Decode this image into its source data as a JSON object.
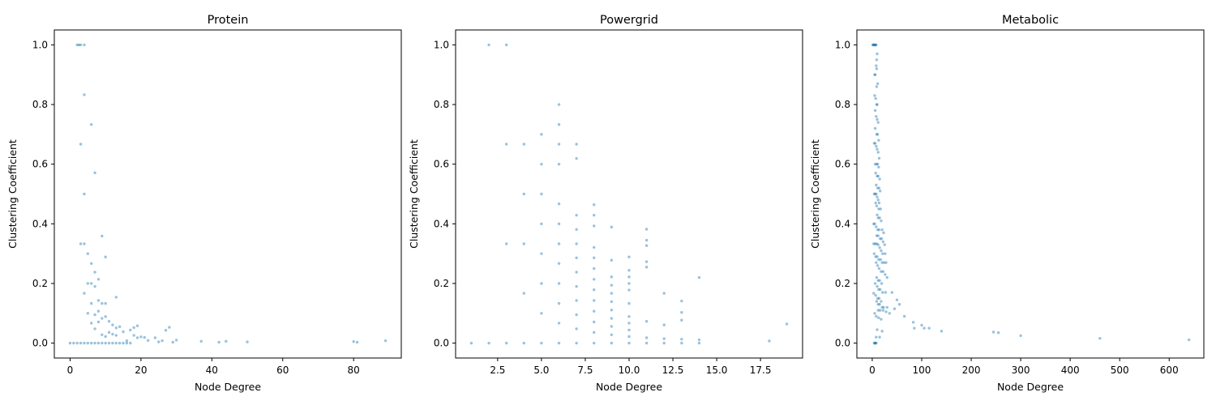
{
  "figure": {
    "background": "#ffffff",
    "point_color": "#1f77b4"
  },
  "chart_data": [
    {
      "type": "scatter",
      "title": "Protein",
      "xlabel": "Node Degree",
      "ylabel": "Clustering Coefficient",
      "xlim": [
        -4.45,
        93.45
      ],
      "ylim": [
        -0.05,
        1.05
      ],
      "xticks": [
        0,
        20,
        40,
        60,
        80
      ],
      "xtick_labels": [
        "0",
        "20",
        "40",
        "60",
        "80"
      ],
      "yticks": [
        0.0,
        0.2,
        0.4,
        0.6,
        0.8,
        1.0
      ],
      "ytick_labels": [
        "0.0",
        "0.2",
        "0.4",
        "0.6",
        "0.8",
        "1.0"
      ],
      "grid": false,
      "points": [
        [
          2,
          1
        ],
        [
          2.5,
          1
        ],
        [
          3,
          1
        ],
        [
          4,
          1
        ],
        [
          4,
          0.833
        ],
        [
          6,
          0.733
        ],
        [
          7,
          0.571
        ],
        [
          3,
          0.667
        ],
        [
          4,
          0.5
        ],
        [
          3,
          0.333
        ],
        [
          4,
          0.333
        ],
        [
          9,
          0.359
        ],
        [
          10,
          0.289
        ],
        [
          4,
          0.167
        ],
        [
          5,
          0.3
        ],
        [
          6,
          0.267
        ],
        [
          7,
          0.19
        ],
        [
          8,
          0.214
        ],
        [
          13,
          0.154
        ],
        [
          5,
          0.2
        ],
        [
          6,
          0.2
        ],
        [
          7,
          0.238
        ],
        [
          8,
          0.143
        ],
        [
          9,
          0.133
        ],
        [
          10,
          0.133
        ],
        [
          6,
          0.133
        ],
        [
          7,
          0.095
        ],
        [
          8,
          0.107
        ],
        [
          9,
          0.083
        ],
        [
          10,
          0.089
        ],
        [
          11,
          0.073
        ],
        [
          12,
          0.061
        ],
        [
          13,
          0.051
        ],
        [
          14,
          0.055
        ],
        [
          15,
          0.038
        ],
        [
          17,
          0.044
        ],
        [
          18,
          0.052
        ],
        [
          19,
          0.058
        ],
        [
          20,
          0.021
        ],
        [
          21,
          0.019
        ],
        [
          27,
          0.043
        ],
        [
          28,
          0.053
        ],
        [
          24,
          0.018
        ],
        [
          5,
          0.1
        ],
        [
          6,
          0.067
        ],
        [
          7,
          0.048
        ],
        [
          8,
          0.071
        ],
        [
          9,
          0.028
        ],
        [
          10,
          0.022
        ],
        [
          11,
          0.036
        ],
        [
          12,
          0.03
        ],
        [
          13,
          0.026
        ],
        [
          18,
          0.026
        ],
        [
          19,
          0.018
        ],
        [
          16,
          0.008
        ],
        [
          22,
          0.009
        ],
        [
          25,
          0.004
        ],
        [
          26,
          0.008
        ],
        [
          30,
          0.01
        ],
        [
          29,
          0.003
        ],
        [
          37,
          0.006
        ],
        [
          42,
          0.003
        ],
        [
          44,
          0.006
        ],
        [
          50,
          0.004
        ],
        [
          80,
          0.005
        ],
        [
          81,
          0.003
        ],
        [
          89,
          0.008
        ],
        [
          0,
          0
        ],
        [
          1,
          0
        ],
        [
          2,
          0
        ],
        [
          3,
          0
        ],
        [
          4,
          0
        ],
        [
          5,
          0
        ],
        [
          6,
          0
        ],
        [
          7,
          0
        ],
        [
          8,
          0
        ],
        [
          9,
          0
        ],
        [
          10,
          0
        ],
        [
          11,
          0
        ],
        [
          12,
          0
        ],
        [
          13,
          0
        ],
        [
          14,
          0
        ],
        [
          15,
          0
        ],
        [
          16,
          0
        ],
        [
          17,
          0
        ]
      ]
    },
    {
      "type": "scatter",
      "title": "Powergrid",
      "xlabel": "Node Degree",
      "ylabel": "Clustering Coefficient",
      "xlim": [
        0.1,
        19.9
      ],
      "ylim": [
        -0.05,
        1.05
      ],
      "xticks": [
        2.5,
        5.0,
        7.5,
        10.0,
        12.5,
        15.0,
        17.5
      ],
      "xtick_labels": [
        "2.5",
        "5.0",
        "7.5",
        "10.0",
        "12.5",
        "15.0",
        "17.5"
      ],
      "yticks": [
        0.0,
        0.2,
        0.4,
        0.6,
        0.8,
        1.0
      ],
      "ytick_labels": [
        "0.0",
        "0.2",
        "0.4",
        "0.6",
        "0.8",
        "1.0"
      ],
      "grid": false,
      "points": [
        [
          1,
          0
        ],
        [
          2,
          0
        ],
        [
          2,
          1
        ],
        [
          3,
          0
        ],
        [
          3,
          1
        ],
        [
          3,
          0.667
        ],
        [
          3,
          0.333
        ],
        [
          4,
          0
        ],
        [
          4,
          0.667
        ],
        [
          4,
          0.5
        ],
        [
          4,
          0.333
        ],
        [
          4,
          0.167
        ],
        [
          5,
          0
        ],
        [
          5,
          0.7
        ],
        [
          5,
          0.6
        ],
        [
          5,
          0.5
        ],
        [
          5,
          0.4
        ],
        [
          5,
          0.3
        ],
        [
          5,
          0.2
        ],
        [
          5,
          0.1
        ],
        [
          6,
          0
        ],
        [
          6,
          0.8
        ],
        [
          6,
          0.733
        ],
        [
          6,
          0.667
        ],
        [
          6,
          0.6
        ],
        [
          6,
          0.467
        ],
        [
          6,
          0.4
        ],
        [
          6,
          0.333
        ],
        [
          6,
          0.267
        ],
        [
          6,
          0.2
        ],
        [
          6,
          0.133
        ],
        [
          6,
          0.067
        ],
        [
          7,
          0
        ],
        [
          7,
          0.667
        ],
        [
          7,
          0.619
        ],
        [
          7,
          0.429
        ],
        [
          7,
          0.381
        ],
        [
          7,
          0.333
        ],
        [
          7,
          0.286
        ],
        [
          7,
          0.238
        ],
        [
          7,
          0.19
        ],
        [
          7,
          0.143
        ],
        [
          7,
          0.095
        ],
        [
          7,
          0.048
        ],
        [
          8,
          0
        ],
        [
          8,
          0.464
        ],
        [
          8,
          0.429
        ],
        [
          8,
          0.393
        ],
        [
          8,
          0.321
        ],
        [
          8,
          0.286
        ],
        [
          8,
          0.25
        ],
        [
          8,
          0.214
        ],
        [
          8,
          0.179
        ],
        [
          8,
          0.143
        ],
        [
          8,
          0.107
        ],
        [
          8,
          0.071
        ],
        [
          8,
          0.036
        ],
        [
          9,
          0
        ],
        [
          9,
          0.389
        ],
        [
          9,
          0.278
        ],
        [
          9,
          0.222
        ],
        [
          9,
          0.194
        ],
        [
          9,
          0.167
        ],
        [
          9,
          0.139
        ],
        [
          9,
          0.111
        ],
        [
          9,
          0.083
        ],
        [
          9,
          0.056
        ],
        [
          9,
          0.028
        ],
        [
          10,
          0
        ],
        [
          10,
          0.289
        ],
        [
          10,
          0.244
        ],
        [
          10,
          0.222
        ],
        [
          10,
          0.2
        ],
        [
          10,
          0.178
        ],
        [
          10,
          0.133
        ],
        [
          10,
          0.089
        ],
        [
          10,
          0.067
        ],
        [
          10,
          0.044
        ],
        [
          10,
          0.022
        ],
        [
          11,
          0
        ],
        [
          11,
          0.382
        ],
        [
          11,
          0.345
        ],
        [
          11,
          0.327
        ],
        [
          11,
          0.273
        ],
        [
          11,
          0.255
        ],
        [
          11,
          0.073
        ],
        [
          11,
          0.018
        ],
        [
          12,
          0
        ],
        [
          12,
          0.167
        ],
        [
          12,
          0.061
        ],
        [
          12,
          0.015
        ],
        [
          13,
          0
        ],
        [
          13,
          0.141
        ],
        [
          13,
          0.103
        ],
        [
          13,
          0.077
        ],
        [
          13,
          0.013
        ],
        [
          14,
          0
        ],
        [
          14,
          0.22
        ],
        [
          14,
          0.011
        ],
        [
          18,
          0.007
        ],
        [
          19,
          0.064
        ]
      ]
    },
    {
      "type": "scatter",
      "title": "Metabolic",
      "xlabel": "Node Degree",
      "ylabel": "Clustering Coefficient",
      "xlim": [
        -31,
        670
      ],
      "ylim": [
        -0.05,
        1.05
      ],
      "xticks": [
        0,
        100,
        200,
        300,
        400,
        500,
        600
      ],
      "xtick_labels": [
        "0",
        "100",
        "200",
        "300",
        "400",
        "500",
        "600"
      ],
      "yticks": [
        0.0,
        0.2,
        0.4,
        0.6,
        0.8,
        1.0
      ],
      "ytick_labels": [
        "0.0",
        "0.2",
        "0.4",
        "0.6",
        "0.8",
        "1.0"
      ],
      "grid": false,
      "points": [
        [
          1,
          1
        ],
        [
          2,
          1
        ],
        [
          3,
          1
        ],
        [
          4,
          1
        ],
        [
          5,
          1
        ],
        [
          6,
          1
        ],
        [
          7,
          1
        ],
        [
          8,
          1
        ],
        [
          9,
          0.95
        ],
        [
          10,
          0.97
        ],
        [
          8,
          0.93
        ],
        [
          9,
          0.92
        ],
        [
          5,
          0.9
        ],
        [
          6,
          0.9
        ],
        [
          9,
          0.86
        ],
        [
          11,
          0.87
        ],
        [
          5,
          0.83
        ],
        [
          7,
          0.82
        ],
        [
          9,
          0.8
        ],
        [
          10,
          0.8
        ],
        [
          6,
          0.78
        ],
        [
          8,
          0.76
        ],
        [
          10,
          0.75
        ],
        [
          12,
          0.74
        ],
        [
          6,
          0.72
        ],
        [
          9,
          0.7
        ],
        [
          11,
          0.7
        ],
        [
          13,
          0.68
        ],
        [
          4,
          0.67
        ],
        [
          6,
          0.67
        ],
        [
          8,
          0.66
        ],
        [
          10,
          0.65
        ],
        [
          12,
          0.64
        ],
        [
          14,
          0.62
        ],
        [
          6,
          0.6
        ],
        [
          9,
          0.6
        ],
        [
          11,
          0.6
        ],
        [
          13,
          0.59
        ],
        [
          7,
          0.57
        ],
        [
          10,
          0.56
        ],
        [
          12,
          0.56
        ],
        [
          15,
          0.55
        ],
        [
          8,
          0.53
        ],
        [
          11,
          0.52
        ],
        [
          14,
          0.52
        ],
        [
          16,
          0.51
        ],
        [
          4,
          0.5
        ],
        [
          6,
          0.5
        ],
        [
          8,
          0.5
        ],
        [
          10,
          0.49
        ],
        [
          12,
          0.48
        ],
        [
          14,
          0.47
        ],
        [
          7,
          0.47
        ],
        [
          9,
          0.46
        ],
        [
          13,
          0.45
        ],
        [
          17,
          0.45
        ],
        [
          10,
          0.43
        ],
        [
          12,
          0.42
        ],
        [
          15,
          0.42
        ],
        [
          18,
          0.41
        ],
        [
          3,
          0.4
        ],
        [
          5,
          0.4
        ],
        [
          8,
          0.39
        ],
        [
          11,
          0.38
        ],
        [
          14,
          0.38
        ],
        [
          20,
          0.38
        ],
        [
          23,
          0.37
        ],
        [
          9,
          0.36
        ],
        [
          12,
          0.36
        ],
        [
          16,
          0.35
        ],
        [
          19,
          0.35
        ],
        [
          22,
          0.34
        ],
        [
          25,
          0.33
        ],
        [
          3,
          0.333
        ],
        [
          6,
          0.333
        ],
        [
          9,
          0.333
        ],
        [
          12,
          0.33
        ],
        [
          15,
          0.32
        ],
        [
          18,
          0.31
        ],
        [
          21,
          0.3
        ],
        [
          26,
          0.3
        ],
        [
          4,
          0.3
        ],
        [
          7,
          0.29
        ],
        [
          10,
          0.29
        ],
        [
          13,
          0.28
        ],
        [
          17,
          0.28
        ],
        [
          20,
          0.27
        ],
        [
          24,
          0.27
        ],
        [
          28,
          0.27
        ],
        [
          8,
          0.27
        ],
        [
          11,
          0.26
        ],
        [
          14,
          0.25
        ],
        [
          18,
          0.24
        ],
        [
          22,
          0.24
        ],
        [
          26,
          0.23
        ],
        [
          30,
          0.22
        ],
        [
          9,
          0.22
        ],
        [
          12,
          0.21
        ],
        [
          15,
          0.21
        ],
        [
          19,
          0.2
        ],
        [
          6,
          0.2
        ],
        [
          10,
          0.19
        ],
        [
          13,
          0.18
        ],
        [
          16,
          0.18
        ],
        [
          21,
          0.17
        ],
        [
          27,
          0.17
        ],
        [
          40,
          0.17
        ],
        [
          3,
          0.167
        ],
        [
          7,
          0.16
        ],
        [
          11,
          0.15
        ],
        [
          14,
          0.15
        ],
        [
          18,
          0.14
        ],
        [
          9,
          0.14
        ],
        [
          12,
          0.13
        ],
        [
          15,
          0.13
        ],
        [
          20,
          0.12
        ],
        [
          23,
          0.12
        ],
        [
          30,
          0.12
        ],
        [
          50,
          0.145
        ],
        [
          55,
          0.13
        ],
        [
          12,
          0.11
        ],
        [
          16,
          0.11
        ],
        [
          22,
          0.11
        ],
        [
          28,
          0.105
        ],
        [
          35,
          0.1
        ],
        [
          45,
          0.115
        ],
        [
          5,
          0.1
        ],
        [
          8,
          0.09
        ],
        [
          13,
          0.085
        ],
        [
          18,
          0.08
        ],
        [
          65,
          0.09
        ],
        [
          83,
          0.07
        ],
        [
          85,
          0.05
        ],
        [
          100,
          0.06
        ],
        [
          105,
          0.05
        ],
        [
          115,
          0.05
        ],
        [
          140,
          0.04
        ],
        [
          245,
          0.037
        ],
        [
          255,
          0.035
        ],
        [
          300,
          0.025
        ],
        [
          460,
          0.016
        ],
        [
          640,
          0.011
        ],
        [
          10,
          0.045
        ],
        [
          20,
          0.04
        ],
        [
          15,
          0.02
        ],
        [
          8,
          0.02
        ],
        [
          4,
          0
        ],
        [
          6,
          0
        ],
        [
          7,
          0
        ],
        [
          8,
          0
        ],
        [
          5,
          0
        ]
      ]
    }
  ]
}
